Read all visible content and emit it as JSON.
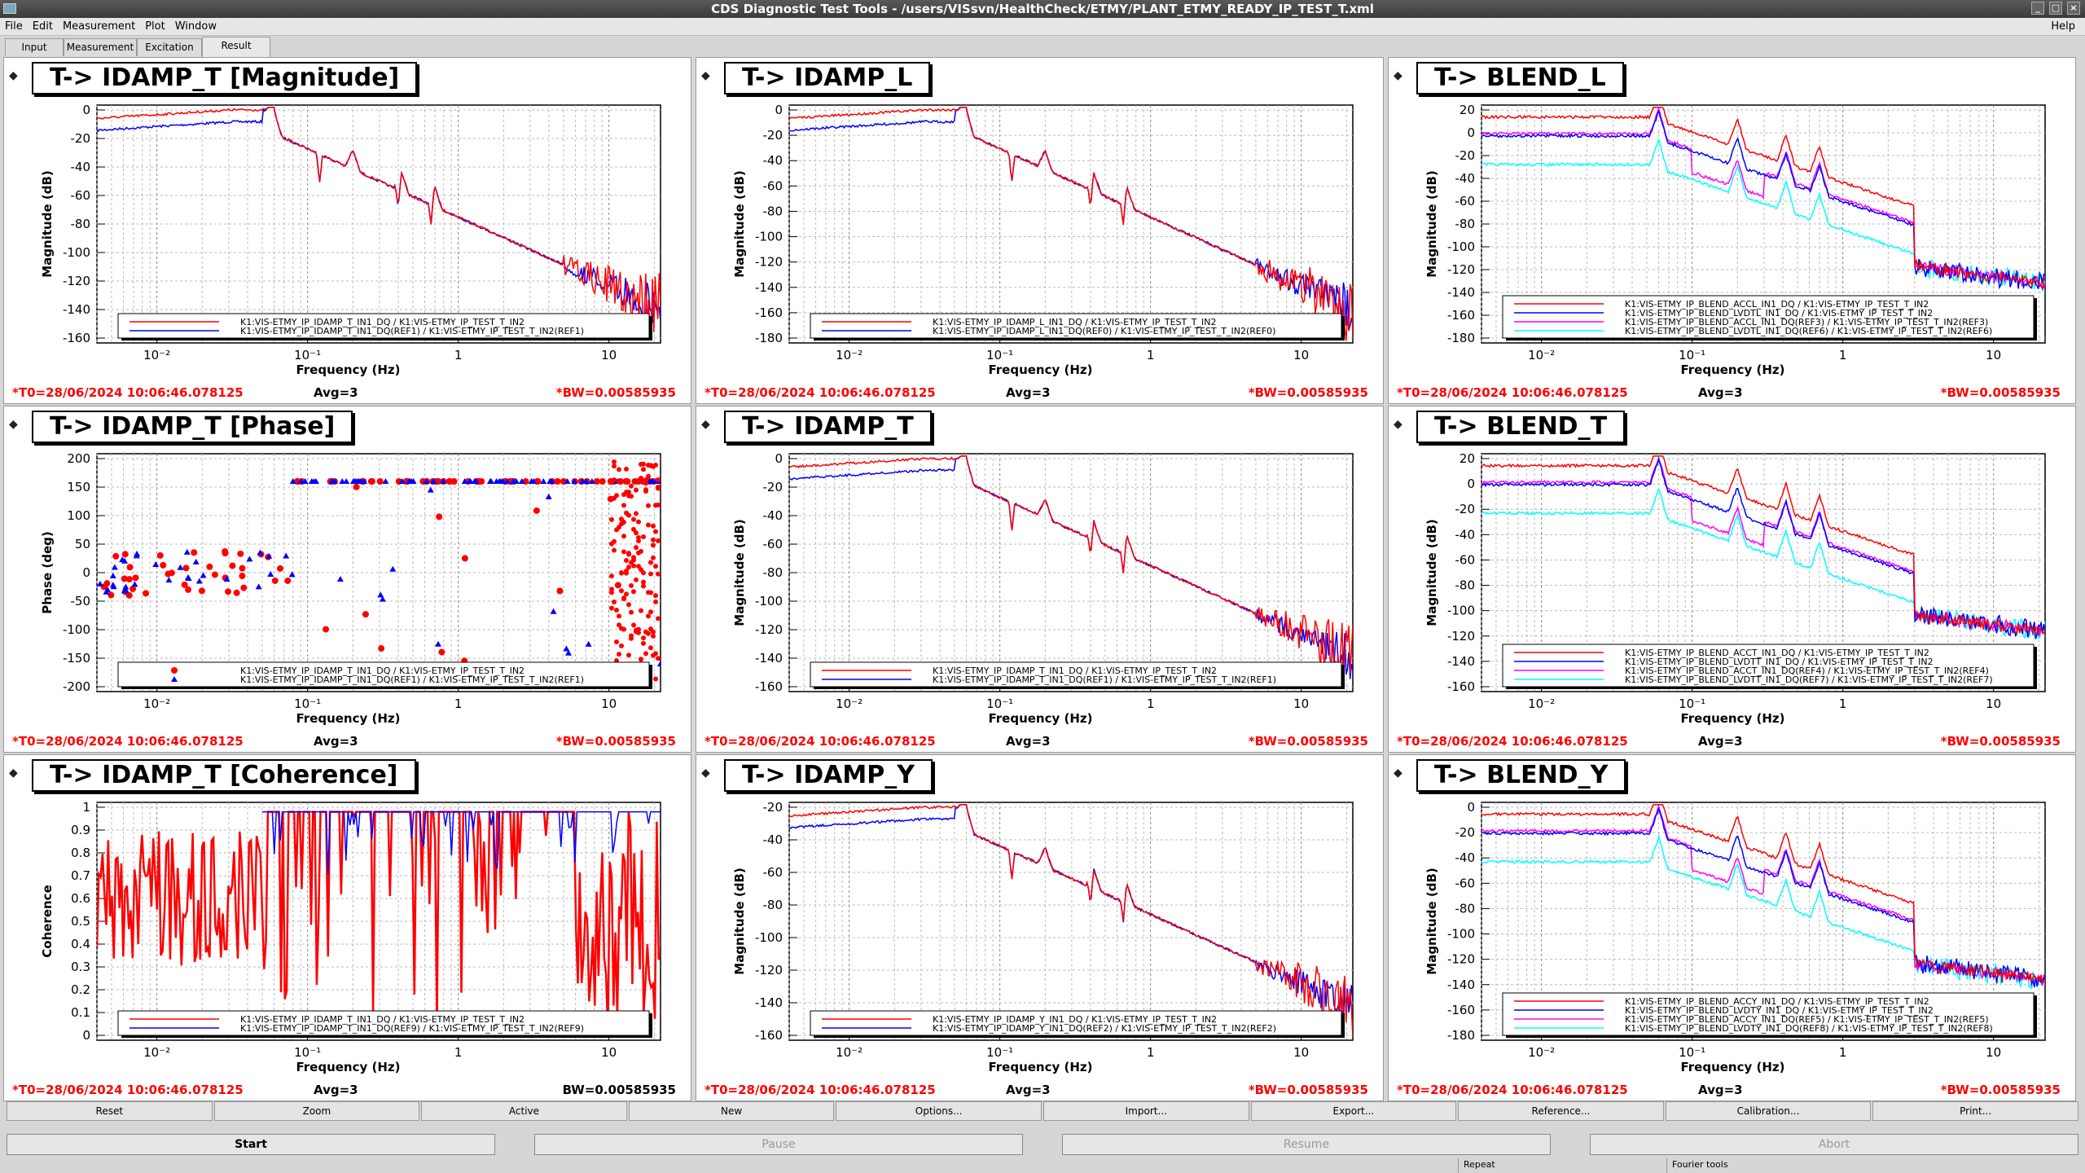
{
  "window": {
    "title": "CDS Diagnostic Test Tools - /users/VISsvn/HealthCheck/ETMY/PLANT_ETMY_READY_IP_TEST_T.xml",
    "minimize": "_",
    "maximize": "□",
    "close": "×"
  },
  "menu": {
    "items": [
      "File",
      "Edit",
      "Measurement",
      "Plot",
      "Window"
    ],
    "help": "Help"
  },
  "tabs": [
    "Input",
    "Measurement",
    "Excitation",
    "Result"
  ],
  "colors": {
    "red": "#ff0000",
    "blue": "#0000ff",
    "magenta": "#ff00ff",
    "cyan": "#00ffff"
  },
  "footer": {
    "t0": "*T0=28/06/2024 10:06:46.078125",
    "avg": "Avg=3",
    "bw": "*BW=0.00585935",
    "bw_plain": "BW=0.00585935"
  },
  "xaxis": {
    "label": "Frequency (Hz)",
    "ticks": [
      "10⁻²",
      "10⁻¹",
      "1",
      "10"
    ]
  },
  "corner_glyph": "◆",
  "panels": [
    {
      "title": "T-> IDAMP_T [Magnitude]",
      "ylabel": "Magnitude (dB)",
      "yticks": [
        "0",
        "-20",
        "-40",
        "-60",
        "-80",
        "-100",
        "-120",
        "-140",
        "-160"
      ],
      "legend": [
        "K1:VIS-ETMY_IP_IDAMP_T_IN1_DQ / K1:VIS-ETMY_IP_TEST_T_IN2",
        "K1:VIS-ETMY_IP_IDAMP_T_IN1_DQ(REF1) / K1:VIS-ETMY_IP_TEST_T_IN2(REF1)"
      ]
    },
    {
      "title": "T-> IDAMP_L",
      "ylabel": "Magnitude (dB)",
      "yticks": [
        "0",
        "-20",
        "-40",
        "-60",
        "-80",
        "-100",
        "-120",
        "-140",
        "-160",
        "-180"
      ],
      "legend": [
        "K1:VIS-ETMY_IP_IDAMP_L_IN1_DQ / K1:VIS-ETMY_IP_TEST_T_IN2",
        "K1:VIS-ETMY_IP_IDAMP_L_IN1_DQ(REF0) / K1:VIS-ETMY_IP_TEST_T_IN2(REF0)"
      ]
    },
    {
      "title": "T-> BLEND_L",
      "ylabel": "Magnitude (dB)",
      "yticks": [
        "20",
        "0",
        "-20",
        "-40",
        "-60",
        "-80",
        "-100",
        "-120",
        "-140",
        "-160",
        "-180"
      ],
      "legend": [
        "K1:VIS-ETMY_IP_BLEND_ACCL_IN1_DQ / K1:VIS-ETMY_IP_TEST_T_IN2",
        "K1:VIS-ETMY_IP_BLEND_LVDTL_IN1_DQ / K1:VIS-ETMY_IP_TEST_T_IN2",
        "K1:VIS-ETMY_IP_BLEND_ACCL_IN1_DQ(REF3) / K1:VIS-ETMY_IP_TEST_T_IN2(REF3)",
        "K1:VIS-ETMY_IP_BLEND_LVDTL_IN1_DQ(REF6) / K1:VIS-ETMY_IP_TEST_T_IN2(REF6)"
      ]
    },
    {
      "title": "T-> IDAMP_T [Phase]",
      "ylabel": "Phase (deg)",
      "yticks": [
        "200",
        "150",
        "100",
        "50",
        "0",
        "-50",
        "-100",
        "-150",
        "-200"
      ],
      "legend": [
        "K1:VIS-ETMY_IP_IDAMP_T_IN1_DQ / K1:VIS-ETMY_IP_TEST_T_IN2",
        "K1:VIS-ETMY_IP_IDAMP_T_IN1_DQ(REF1) / K1:VIS-ETMY_IP_TEST_T_IN2(REF1)"
      ]
    },
    {
      "title": "T-> IDAMP_T",
      "ylabel": "Magnitude (dB)",
      "yticks": [
        "0",
        "-20",
        "-40",
        "-60",
        "-80",
        "-100",
        "-120",
        "-140",
        "-160"
      ],
      "legend": [
        "K1:VIS-ETMY_IP_IDAMP_T_IN1_DQ / K1:VIS-ETMY_IP_TEST_T_IN2",
        "K1:VIS-ETMY_IP_IDAMP_T_IN1_DQ(REF1) / K1:VIS-ETMY_IP_TEST_T_IN2(REF1)"
      ]
    },
    {
      "title": "T-> BLEND_T",
      "ylabel": "Magnitude (dB)",
      "yticks": [
        "20",
        "0",
        "-20",
        "-40",
        "-60",
        "-80",
        "-100",
        "-120",
        "-140",
        "-160"
      ],
      "legend": [
        "K1:VIS-ETMY_IP_BLEND_ACCT_IN1_DQ / K1:VIS-ETMY_IP_TEST_T_IN2",
        "K1:VIS-ETMY_IP_BLEND_LVDTT_IN1_DQ / K1:VIS-ETMY_IP_TEST_T_IN2",
        "K1:VIS-ETMY_IP_BLEND_ACCT_IN1_DQ(REF4) / K1:VIS-ETMY_IP_TEST_T_IN2(REF4)",
        "K1:VIS-ETMY_IP_BLEND_LVDTT_IN1_DQ(REF7) / K1:VIS-ETMY_IP_TEST_T_IN2(REF7)"
      ]
    },
    {
      "title": "T-> IDAMP_T [Coherence]",
      "ylabel": "Coherence",
      "yticks": [
        "1",
        "0.9",
        "0.8",
        "0.7",
        "0.6",
        "0.5",
        "0.4",
        "0.3",
        "0.2",
        "0.1",
        "0"
      ],
      "legend": [
        "K1:VIS-ETMY_IP_IDAMP_T_IN1_DQ / K1:VIS-ETMY_IP_TEST_T_IN2",
        "K1:VIS-ETMY_IP_IDAMP_T_IN1_DQ(REF9) / K1:VIS-ETMY_IP_TEST_T_IN2(REF9)"
      ]
    },
    {
      "title": "T-> IDAMP_Y",
      "ylabel": "Magnitude (dB)",
      "yticks": [
        "-20",
        "-40",
        "-60",
        "-80",
        "-100",
        "-120",
        "-140",
        "-160"
      ],
      "legend": [
        "K1:VIS-ETMY_IP_IDAMP_Y_IN1_DQ / K1:VIS-ETMY_IP_TEST_T_IN2",
        "K1:VIS-ETMY_IP_IDAMP_Y_IN1_DQ(REF2) / K1:VIS-ETMY_IP_TEST_T_IN2(REF2)"
      ]
    },
    {
      "title": "T-> BLEND_Y",
      "ylabel": "Magnitude (dB)",
      "yticks": [
        "0",
        "-20",
        "-40",
        "-60",
        "-80",
        "-100",
        "-120",
        "-140",
        "-160",
        "-180"
      ],
      "legend": [
        "K1:VIS-ETMY_IP_BLEND_ACCY_IN1_DQ / K1:VIS-ETMY_IP_TEST_T_IN2",
        "K1:VIS-ETMY_IP_BLEND_LVDTY_IN1_DQ / K1:VIS-ETMY_IP_TEST_T_IN2",
        "K1:VIS-ETMY_IP_BLEND_ACCY_IN1_DQ(REF5) / K1:VIS-ETMY_IP_TEST_T_IN2(REF5)",
        "K1:VIS-ETMY_IP_BLEND_LVDTY_IN1_DQ(REF8) / K1:VIS-ETMY_IP_TEST_T_IN2(REF8)"
      ]
    }
  ],
  "buttons_row1": [
    "Reset",
    "Zoom",
    "Active",
    "New",
    "Options...",
    "Import...",
    "Export...",
    "Reference...",
    "Calibration...",
    "Print..."
  ],
  "buttons_row2": [
    "Start",
    "Pause",
    "Resume",
    "Abort"
  ],
  "status": [
    "Repeat",
    "Fourier tools"
  ]
}
